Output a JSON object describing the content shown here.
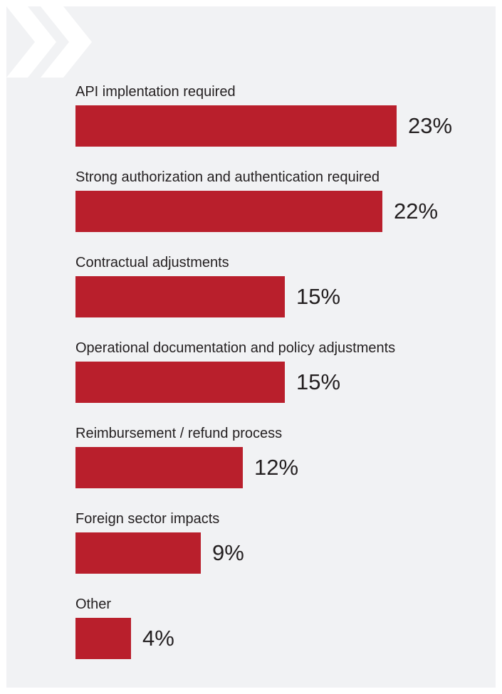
{
  "chart_data": {
    "type": "bar",
    "orientation": "horizontal",
    "categories": [
      "API implentation required",
      "Strong authorization and authentication required",
      "Contractual adjustments",
      "Operational documentation and policy adjustments",
      "Reimbursement / refund process",
      "Foreign sector impacts",
      "Other"
    ],
    "values": [
      23,
      22,
      15,
      15,
      12,
      9,
      4
    ],
    "value_labels": [
      "23%",
      "22%",
      "15%",
      "15%",
      "12%",
      "9%",
      "4%"
    ],
    "title": "",
    "xlabel": "",
    "ylabel": "",
    "xlim": [
      0,
      23
    ],
    "grid": false,
    "bar_color": "#b91f2c"
  },
  "decoration": {
    "icon": "double-chevron-right-icon",
    "color": "#ffffff"
  }
}
